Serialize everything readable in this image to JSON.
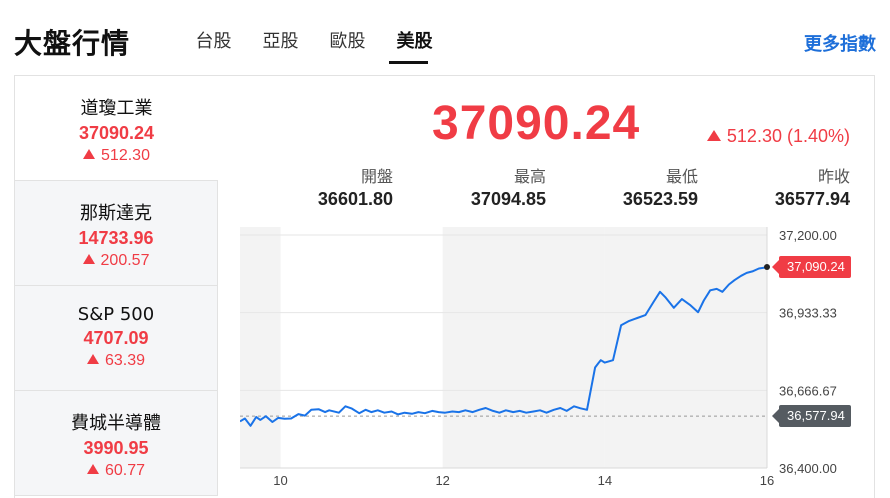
{
  "header": {
    "title": "大盤行情",
    "tabs": [
      {
        "label": "台股",
        "active": false
      },
      {
        "label": "亞股",
        "active": false
      },
      {
        "label": "歐股",
        "active": false
      },
      {
        "label": "美股",
        "active": true
      }
    ],
    "more_link": "更多指數"
  },
  "indices": [
    {
      "name": "道瓊工業",
      "value": "37090.24",
      "change": "512.30",
      "direction": "up",
      "selected": true
    },
    {
      "name": "那斯達克",
      "value": "14733.96",
      "change": "200.57",
      "direction": "up",
      "selected": false
    },
    {
      "name": "S&P 500",
      "value": "4707.09",
      "change": "63.39",
      "direction": "up",
      "selected": false
    },
    {
      "name": "費城半導體",
      "value": "3990.95",
      "change": "60.77",
      "direction": "up",
      "selected": false
    }
  ],
  "quote": {
    "price": "37090.24",
    "change": "512.30 (1.40%)",
    "direction": "up",
    "stats": [
      {
        "label": "開盤",
        "value": "36601.80"
      },
      {
        "label": "最高",
        "value": "37094.85"
      },
      {
        "label": "最低",
        "value": "36523.59"
      },
      {
        "label": "昨收",
        "value": "36577.94"
      }
    ]
  },
  "colors": {
    "up": "#f03c45",
    "line": "#1a73e8",
    "link": "#1e6fd9",
    "ref_tag": "#555b61"
  },
  "chart_data": {
    "type": "line",
    "y_ticks": [
      "37,200.00",
      "36,933.33",
      "36,666.67",
      "36,400.00"
    ],
    "x_ticks": [
      "10",
      "12",
      "14",
      "16"
    ],
    "ylim": [
      36400,
      37200
    ],
    "xlim": [
      9.5,
      16
    ],
    "last_label": "37,090.24",
    "ref_label": "36,577.94",
    "ref_value": 36577.94,
    "shaded_ranges": [
      [
        9.5,
        10
      ],
      [
        12,
        14
      ]
    ],
    "series": [
      {
        "x": [
          9.5,
          9.56,
          9.63,
          9.7,
          9.75,
          9.82,
          9.9,
          9.97,
          10.05,
          10.13,
          10.22,
          10.3,
          10.38,
          10.47,
          10.55,
          10.6,
          10.72,
          10.8,
          10.88,
          10.97,
          11.05,
          11.12,
          11.2,
          11.28,
          11.37,
          11.45,
          11.53,
          11.62,
          11.7,
          11.78,
          11.87,
          11.95,
          12.03,
          12.12,
          12.2,
          12.28,
          12.37,
          12.45,
          12.53,
          12.62,
          12.7,
          12.78,
          12.87,
          12.95,
          13.03,
          13.12,
          13.2,
          13.28,
          13.37,
          13.45,
          13.53,
          13.62,
          13.7,
          13.78,
          13.88,
          13.92,
          13.95,
          14.0,
          14.1,
          14.2,
          14.3,
          14.4,
          14.5,
          14.6,
          14.68,
          14.75,
          14.85,
          14.95,
          15.05,
          15.15,
          15.22,
          15.3,
          15.38,
          15.45,
          15.53,
          15.6,
          15.68,
          15.75,
          15.82,
          15.9,
          15.97,
          16.0
        ],
        "y": [
          36560,
          36570,
          36545,
          36575,
          36565,
          36578,
          36558,
          36572,
          36569,
          36570,
          36585,
          36580,
          36600,
          36602,
          36592,
          36598,
          36590,
          36612,
          36604,
          36588,
          36600,
          36592,
          36598,
          36590,
          36594,
          36584,
          36590,
          36586,
          36592,
          36588,
          36596,
          36592,
          36590,
          36594,
          36592,
          36598,
          36592,
          36600,
          36606,
          36596,
          36590,
          36598,
          36592,
          36596,
          36590,
          36594,
          36598,
          36590,
          36600,
          36606,
          36596,
          36612,
          36605,
          36600,
          36745,
          36760,
          36770,
          36762,
          36770,
          36890,
          36905,
          36915,
          36925,
          36970,
          37005,
          36985,
          36950,
          36980,
          36960,
          36935,
          36975,
          37010,
          37015,
          37005,
          37030,
          37045,
          37060,
          37070,
          37075,
          37085,
          37088,
          37090.24
        ]
      }
    ]
  }
}
